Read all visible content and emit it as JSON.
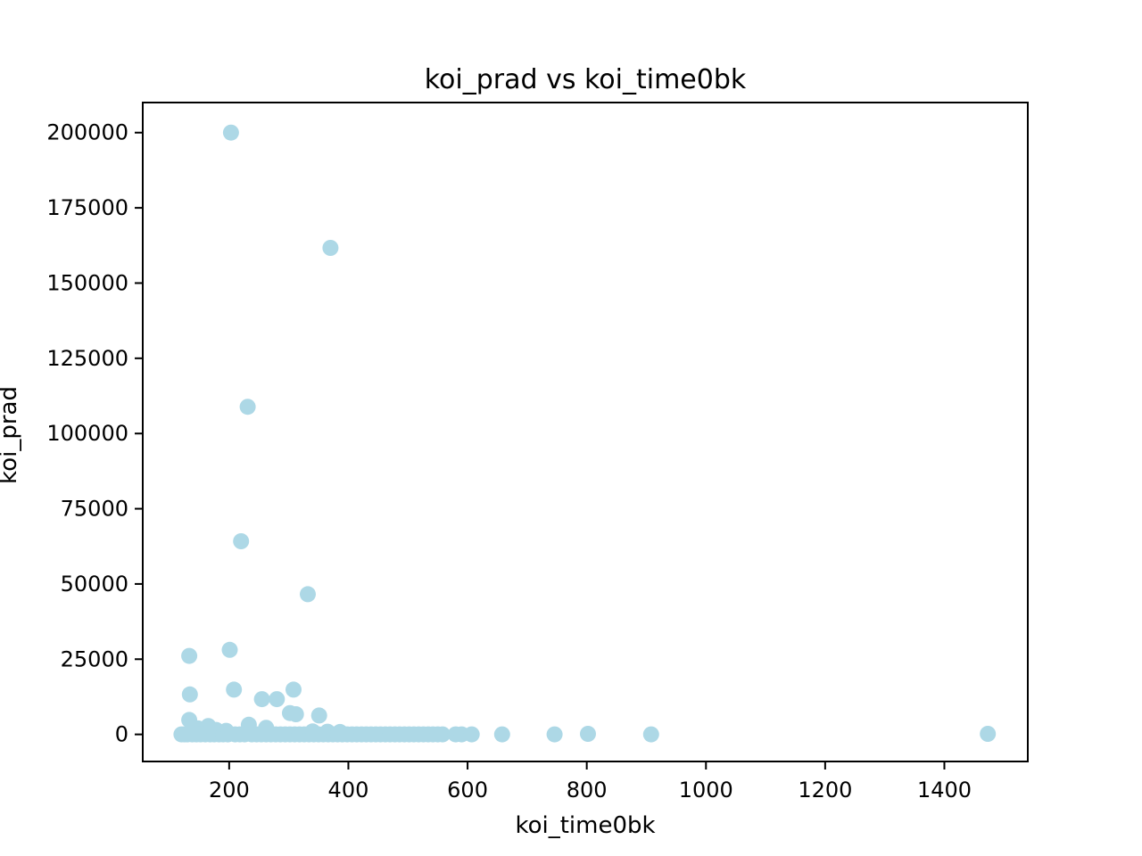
{
  "chart_data": {
    "type": "scatter",
    "title": "koi_prad vs koi_time0bk",
    "xlabel": "koi_time0bk",
    "ylabel": "koi_prad",
    "xlim": [
      55,
      1540
    ],
    "ylim": [
      -9000,
      210000
    ],
    "xticks": [
      200,
      400,
      600,
      800,
      1000,
      1200,
      1400
    ],
    "yticks": [
      0,
      25000,
      50000,
      75000,
      100000,
      125000,
      150000,
      175000,
      200000
    ],
    "grid": false,
    "legend": "none",
    "colors": {
      "point": "#add8e6",
      "axis": "#000000",
      "background": "#ffffff"
    },
    "series": [
      {
        "points": [
          [
            203,
            200000
          ],
          [
            370,
            161700
          ],
          [
            231,
            108900
          ],
          [
            220,
            64200
          ],
          [
            332,
            46600
          ],
          [
            201,
            28100
          ],
          [
            133,
            26100
          ],
          [
            308,
            14900
          ],
          [
            208,
            14900
          ],
          [
            134,
            13300
          ],
          [
            255,
            11700
          ],
          [
            280,
            11700
          ],
          [
            302,
            7100
          ],
          [
            312,
            6700
          ],
          [
            351,
            6300
          ],
          [
            133,
            4800
          ],
          [
            165,
            2800
          ],
          [
            233,
            3200
          ],
          [
            262,
            2200
          ],
          [
            148,
            2000
          ],
          [
            178,
            1500
          ],
          [
            195,
            1200
          ],
          [
            340,
            1000
          ],
          [
            365,
            900
          ],
          [
            386,
            800
          ],
          [
            120,
            0
          ],
          [
            125,
            0
          ],
          [
            130,
            0
          ],
          [
            138,
            0
          ],
          [
            145,
            0
          ],
          [
            152,
            0
          ],
          [
            160,
            0
          ],
          [
            168,
            0
          ],
          [
            175,
            0
          ],
          [
            183,
            0
          ],
          [
            190,
            0
          ],
          [
            198,
            0
          ],
          [
            210,
            0
          ],
          [
            218,
            0
          ],
          [
            226,
            0
          ],
          [
            238,
            0
          ],
          [
            246,
            0
          ],
          [
            254,
            0
          ],
          [
            262,
            0
          ],
          [
            270,
            0
          ],
          [
            278,
            0
          ],
          [
            286,
            0
          ],
          [
            294,
            0
          ],
          [
            302,
            0
          ],
          [
            310,
            0
          ],
          [
            318,
            0
          ],
          [
            326,
            0
          ],
          [
            334,
            0
          ],
          [
            342,
            0
          ],
          [
            350,
            0
          ],
          [
            358,
            0
          ],
          [
            366,
            0
          ],
          [
            374,
            0
          ],
          [
            382,
            0
          ],
          [
            390,
            0
          ],
          [
            398,
            0
          ],
          [
            406,
            0
          ],
          [
            414,
            0
          ],
          [
            422,
            0
          ],
          [
            430,
            0
          ],
          [
            438,
            0
          ],
          [
            446,
            0
          ],
          [
            454,
            0
          ],
          [
            462,
            0
          ],
          [
            470,
            0
          ],
          [
            478,
            0
          ],
          [
            486,
            0
          ],
          [
            494,
            0
          ],
          [
            502,
            0
          ],
          [
            510,
            0
          ],
          [
            518,
            0
          ],
          [
            526,
            0
          ],
          [
            534,
            0
          ],
          [
            542,
            0
          ],
          [
            550,
            0
          ],
          [
            558,
            0
          ],
          [
            580,
            0
          ],
          [
            590,
            0
          ],
          [
            607,
            0
          ],
          [
            658,
            0
          ],
          [
            746,
            0
          ],
          [
            802,
            200
          ],
          [
            908,
            0
          ],
          [
            1473,
            200
          ]
        ]
      }
    ]
  }
}
